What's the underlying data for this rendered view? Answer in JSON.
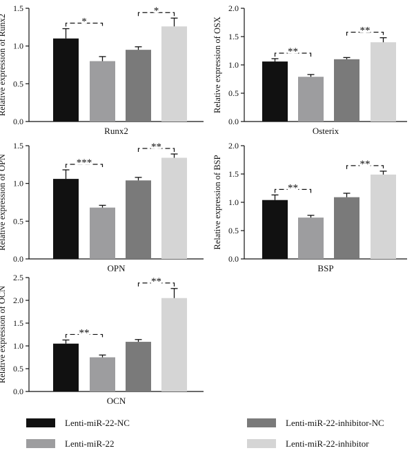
{
  "chart_data": [
    {
      "type": "bar",
      "categories": [
        "Lenti-miR-22-NC",
        "Lenti-miR-22",
        "Lenti-miR-22-inhibitor-NC",
        "Lenti-miR-22-inhibitor"
      ],
      "values": [
        1.1,
        0.8,
        0.95,
        1.26
      ],
      "errors": [
        0.13,
        0.06,
        0.04,
        0.11
      ],
      "xlabel": "Runx2",
      "ylabel": "Relative expression of Runx2",
      "ylim": [
        0,
        1.5
      ],
      "yticks": [
        "0.0",
        "0.5",
        "1.0",
        "1.5"
      ],
      "significance": [
        {
          "pair": [
            0,
            1
          ],
          "label": "*"
        },
        {
          "pair": [
            2,
            3
          ],
          "label": "*"
        }
      ]
    },
    {
      "type": "bar",
      "categories": [
        "Lenti-miR-22-NC",
        "Lenti-miR-22",
        "Lenti-miR-22-inhibitor-NC",
        "Lenti-miR-22-inhibitor"
      ],
      "values": [
        1.06,
        0.79,
        1.1,
        1.4
      ],
      "errors": [
        0.05,
        0.04,
        0.03,
        0.08
      ],
      "xlabel": "Osterix",
      "ylabel": "Relative expression of OSX",
      "ylim": [
        0,
        2.0
      ],
      "yticks": [
        "0.0",
        "0.5",
        "1.0",
        "1.5",
        "2.0"
      ],
      "significance": [
        {
          "pair": [
            0,
            1
          ],
          "label": "**"
        },
        {
          "pair": [
            2,
            3
          ],
          "label": "**"
        }
      ]
    },
    {
      "type": "bar",
      "categories": [
        "Lenti-miR-22-NC",
        "Lenti-miR-22",
        "Lenti-miR-22-inhibitor-NC",
        "Lenti-miR-22-inhibitor"
      ],
      "values": [
        1.06,
        0.68,
        1.04,
        1.34
      ],
      "errors": [
        0.12,
        0.03,
        0.04,
        0.05
      ],
      "xlabel": "OPN",
      "ylabel": "Relative expression of OPN",
      "ylim": [
        0,
        1.5
      ],
      "yticks": [
        "0.0",
        "0.5",
        "1.0",
        "1.5"
      ],
      "significance": [
        {
          "pair": [
            0,
            1
          ],
          "label": "***"
        },
        {
          "pair": [
            2,
            3
          ],
          "label": "**"
        }
      ]
    },
    {
      "type": "bar",
      "categories": [
        "Lenti-miR-22-NC",
        "Lenti-miR-22",
        "Lenti-miR-22-inhibitor-NC",
        "Lenti-miR-22-inhibitor"
      ],
      "values": [
        1.04,
        0.73,
        1.09,
        1.49
      ],
      "errors": [
        0.09,
        0.04,
        0.07,
        0.06
      ],
      "xlabel": "BSP",
      "ylabel": "Relative expression of BSP",
      "ylim": [
        0,
        2.0
      ],
      "yticks": [
        "0.0",
        "0.5",
        "1.0",
        "1.5",
        "2.0"
      ],
      "significance": [
        {
          "pair": [
            0,
            1
          ],
          "label": "**"
        },
        {
          "pair": [
            2,
            3
          ],
          "label": "**"
        }
      ]
    },
    {
      "type": "bar",
      "categories": [
        "Lenti-miR-22-NC",
        "Lenti-miR-22",
        "Lenti-miR-22-inhibitor-NC",
        "Lenti-miR-22-inhibitor"
      ],
      "values": [
        1.05,
        0.75,
        1.09,
        2.05
      ],
      "errors": [
        0.08,
        0.05,
        0.05,
        0.21
      ],
      "xlabel": "OCN",
      "ylabel": "Relative expression of OCN",
      "ylim": [
        0,
        2.5
      ],
      "yticks": [
        "0.0",
        "0.5",
        "1.0",
        "1.5",
        "2.0",
        "2.5"
      ],
      "significance": [
        {
          "pair": [
            0,
            1
          ],
          "label": "**"
        },
        {
          "pair": [
            2,
            3
          ],
          "label": "**"
        }
      ]
    }
  ],
  "legend": [
    {
      "label": "Lenti-miR-22-NC",
      "color": "#111111"
    },
    {
      "label": "Lenti-miR-22",
      "color": "#9d9d9f"
    },
    {
      "label": "Lenti-miR-22-inhibitor-NC",
      "color": "#7a7a7a"
    },
    {
      "label": "Lenti-miR-22-inhibitor",
      "color": "#d5d5d5"
    }
  ],
  "colors": [
    "#111111",
    "#9d9d9f",
    "#7a7a7a",
    "#d5d5d5"
  ]
}
